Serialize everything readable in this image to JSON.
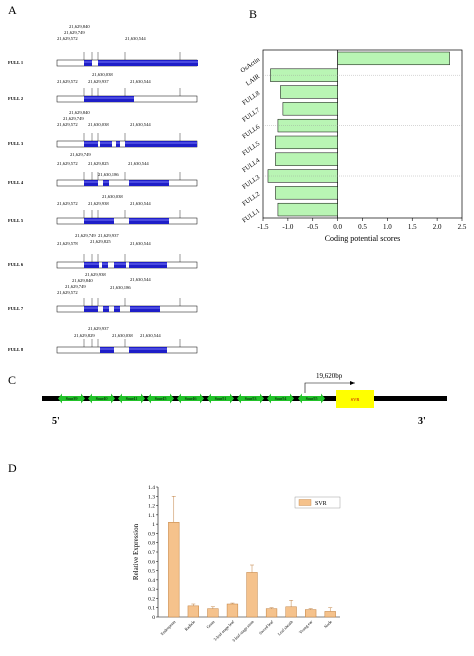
{
  "panel_labels": {
    "a": "A",
    "b": "B",
    "c": "C",
    "d": "D"
  },
  "panel_a": {
    "isoforms": [
      {
        "name": "FULL 1",
        "coords": [
          "21,629,840",
          "21,629,749",
          "21,629,572",
          "21,630,544"
        ]
      },
      {
        "name": "FULL 2",
        "coords": [
          "21,630,038",
          "21,629,572",
          "21,629,937",
          "21,630,544"
        ]
      },
      {
        "name": "FULL 3",
        "coords": [
          "21,629,840",
          "21,629,749",
          "21,629,572",
          "21,630,038",
          "21,630,544"
        ]
      },
      {
        "name": "FULL 4",
        "coords": [
          "21,629,749",
          "21,629,572",
          "21,629,825",
          "21,630,544",
          "21,630,186"
        ]
      },
      {
        "name": "FULL 5",
        "coords": [
          "21,629,572",
          "21,629,938",
          "21,630,038",
          "21,630,544"
        ]
      },
      {
        "name": "FULL 6",
        "coords": [
          "21,629,749",
          "21,629,937",
          "21,629,578",
          "21,629,825",
          "21,630,544"
        ]
      },
      {
        "name": "FULL 7",
        "coords": [
          "21,629,938",
          "21,629,840",
          "21,629,749",
          "21,630,544",
          "21,630,186",
          "21,629,572"
        ]
      },
      {
        "name": "FULL 8",
        "coords": [
          "21,629,937",
          "21,629,829",
          "21,630,038",
          "21,630,544"
        ]
      }
    ]
  },
  "panel_c": {
    "genes": [
      "Saur39",
      "Saur40",
      "Saur41",
      "Saur45",
      "Saur46",
      "Saur51",
      "Saur53",
      "Saur54",
      "Saur55"
    ],
    "svr_label": "SVR",
    "distance": "19,620bp",
    "five_prime": "5'",
    "three_prime": "3'"
  },
  "chart_data": [
    {
      "type": "bar",
      "orientation": "horizontal",
      "categories": [
        "FULL1",
        "FULL2",
        "FULL3",
        "FULL4",
        "FULL5",
        "FULL6",
        "FULL7",
        "FULL8",
        "LAIR",
        "OsActin"
      ],
      "values": [
        -1.2,
        -1.25,
        -1.4,
        -1.25,
        -1.25,
        -1.2,
        -1.1,
        -1.15,
        -1.35,
        2.25
      ],
      "xlabel": "Coding potential scores",
      "xlim": [
        -1.5,
        2.5
      ],
      "xticks": [
        "-1.5",
        "-1.0",
        "-0.5",
        "0.0",
        "0.5",
        "1.0",
        "1.5",
        "2.0",
        "2.5"
      ],
      "color": "#b9f5b4"
    },
    {
      "type": "bar",
      "categories": [
        "Endosperm",
        "Radicle",
        "Germ",
        "3-leaf-stage leaf",
        "3-leaf-stage stem",
        "Sword leaf",
        "Leaf sheath",
        "Young ear",
        "Node"
      ],
      "values": [
        1.02,
        0.12,
        0.09,
        0.14,
        0.48,
        0.09,
        0.11,
        0.08,
        0.06
      ],
      "errors": [
        0.28,
        0.02,
        0.02,
        0.01,
        0.08,
        0.01,
        0.07,
        0.01,
        0.04
      ],
      "ylabel": "Relative Expression",
      "ylim": [
        0,
        1.4
      ],
      "yticks": [
        "0",
        "0.1",
        "0.2",
        "0.3",
        "0.4",
        "0.5",
        "0.6",
        "0.7",
        "0.8",
        "0.9",
        "1",
        "1.1",
        "1.2",
        "1.3",
        "1.4"
      ],
      "legend": "SVR",
      "legend_position": "top-right",
      "color": "#f5c28c"
    }
  ]
}
